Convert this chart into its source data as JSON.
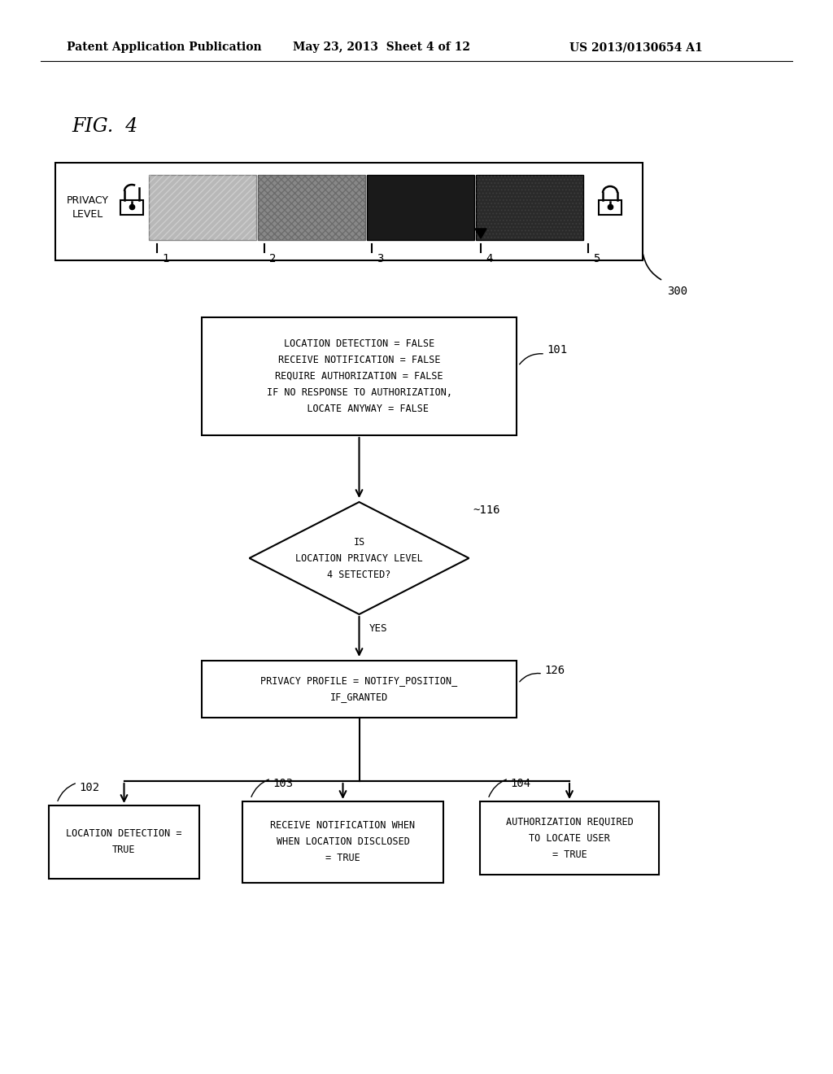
{
  "header_left": "Patent Application Publication",
  "header_mid": "May 23, 2013  Sheet 4 of 12",
  "header_right": "US 2013/0130654 A1",
  "fig_label": "FIG.  4",
  "slider_label": "PRIVACY\nLEVEL",
  "slider_levels": [
    "1",
    "2",
    "3",
    "4",
    "5"
  ],
  "slider_ref": "300",
  "box101_lines": [
    "LOCATION DETECTION = FALSE",
    "RECEIVE NOTIFICATION = FALSE",
    "REQUIRE AUTHORIZATION = FALSE",
    "IF NO RESPONSE TO AUTHORIZATION,",
    "   LOCATE ANYWAY = FALSE"
  ],
  "box101_ref": "101",
  "diamond116_lines": [
    "IS",
    "LOCATION PRIVACY LEVEL",
    "4 SETECTED?"
  ],
  "diamond116_ref": "116",
  "yes_label": "YES",
  "box126_lines": [
    "PRIVACY PROFILE = NOTIFY_POSITION_",
    "IF_GRANTED"
  ],
  "box126_ref": "126",
  "box102_lines": [
    "LOCATION DETECTION =",
    "TRUE"
  ],
  "box102_ref": "102",
  "box103_lines": [
    "RECEIVE NOTIFICATION WHEN",
    "WHEN LOCATION DISCLOSED",
    "= TRUE"
  ],
  "box103_ref": "103",
  "box104_lines": [
    "AUTHORIZATION REQUIRED",
    "TO LOCATE USER",
    "= TRUE"
  ],
  "box104_ref": "104",
  "bg_color": "#ffffff",
  "text_color": "#000000"
}
